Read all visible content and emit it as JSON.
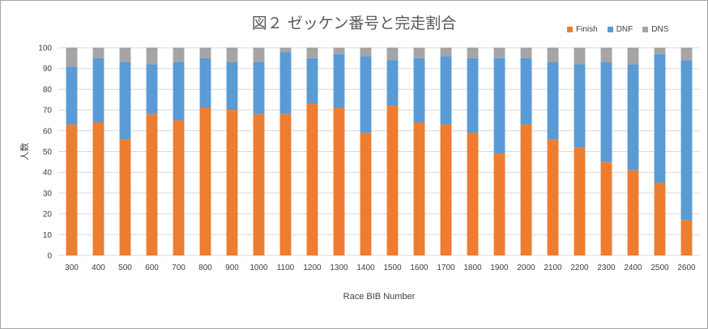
{
  "chart_data": {
    "type": "bar",
    "stacked": true,
    "title": "図２ ゼッケン番号と完走割合",
    "xlabel": "Race BIB Number",
    "ylabel": "人数",
    "ylim": [
      0,
      100
    ],
    "yticks": [
      0,
      10,
      20,
      30,
      40,
      50,
      60,
      70,
      80,
      90,
      100
    ],
    "grid": true,
    "legend_position": "top-right",
    "categories": [
      "300",
      "400",
      "500",
      "600",
      "700",
      "800",
      "900",
      "1000",
      "1100",
      "1200",
      "1300",
      "1400",
      "1500",
      "1600",
      "1700",
      "1800",
      "1900",
      "2000",
      "2100",
      "2200",
      "2300",
      "2400",
      "2500",
      "2600"
    ],
    "series": [
      {
        "name": "Finish",
        "color": "#ed7d31",
        "values": [
          63,
          64,
          56,
          68,
          65,
          71,
          70,
          68,
          68,
          73,
          71,
          59,
          72,
          64,
          63,
          59,
          49,
          63,
          56,
          52,
          45,
          41,
          35,
          17
        ]
      },
      {
        "name": "DNF",
        "color": "#5b9bd5",
        "values": [
          28,
          31,
          37,
          24,
          28,
          24,
          23,
          25,
          30,
          22,
          26,
          37,
          22,
          31,
          33,
          36,
          46,
          32,
          37,
          40,
          48,
          51,
          62,
          77
        ]
      },
      {
        "name": "DNS",
        "color": "#a5a5a5",
        "values": [
          9,
          5,
          7,
          8,
          7,
          5,
          7,
          7,
          2,
          5,
          3,
          4,
          6,
          5,
          4,
          5,
          5,
          5,
          7,
          8,
          7,
          8,
          3,
          6
        ]
      }
    ]
  }
}
